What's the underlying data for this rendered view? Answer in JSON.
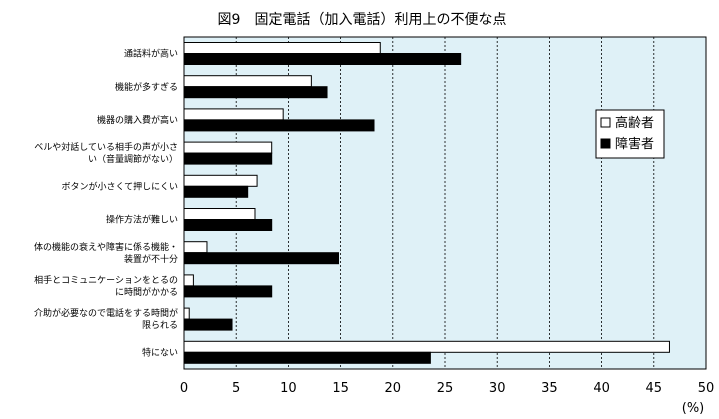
{
  "chart_data": {
    "type": "bar",
    "orientation": "horizontal",
    "title": "図9　固定電話（加入電話）利用上の不便な点",
    "xlabel": "(%)",
    "ylabel": "",
    "xlim": [
      0,
      50
    ],
    "xticks": [
      "0",
      "5",
      "10",
      "15",
      "20",
      "25",
      "30",
      "35",
      "40",
      "45",
      "50"
    ],
    "grid": "vertical-dashed",
    "plot_background": "#dff1f7",
    "legend_position": "right",
    "categories": [
      [
        "通話料が高い"
      ],
      [
        "機能が多すぎる"
      ],
      [
        "機器の購入費が高い"
      ],
      [
        "ベルや対話している相手の声が小さ",
        "い（音量調節がない）"
      ],
      [
        "ボタンが小さくて押しにくい"
      ],
      [
        "操作方法が難しい"
      ],
      [
        "体の機能の衰えや障害に係る機能・",
        "装置が不十分"
      ],
      [
        "相手とコミュニケーションをとるの",
        "に時間がかかる"
      ],
      [
        "介助が必要なので電話をする時間が",
        "限られる"
      ],
      [
        "特にない"
      ]
    ],
    "series": [
      {
        "name": "高齢者",
        "color": "#ffffff",
        "values": [
          18.8,
          12.2,
          9.5,
          8.4,
          7.0,
          6.8,
          2.2,
          0.9,
          0.5,
          46.5
        ]
      },
      {
        "name": "障害者",
        "color": "#000000",
        "values": [
          26.5,
          13.7,
          18.2,
          8.4,
          6.1,
          8.4,
          14.8,
          8.4,
          4.6,
          23.6
        ]
      }
    ]
  }
}
